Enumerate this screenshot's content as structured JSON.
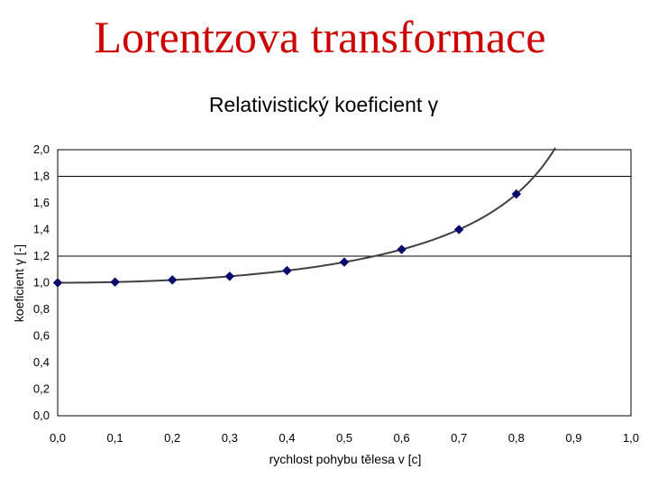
{
  "slide": {
    "title": "Lorentzova transformace"
  },
  "chart_data": {
    "type": "line",
    "title": "Relativistický koeficient γ",
    "xlabel": "rychlost pohybu tělesa v [c]",
    "ylabel": "koeficient γ [-]",
    "xlim": [
      0,
      1.0
    ],
    "ylim": [
      0,
      2.0
    ],
    "x_ticks": [
      "0,0",
      "0,1",
      "0,2",
      "0,3",
      "0,4",
      "0,5",
      "0,6",
      "0,7",
      "0,8",
      "0,9",
      "1,0"
    ],
    "y_ticks": [
      "0,0",
      "0,2",
      "0,4",
      "0,6",
      "0,8",
      "1,0",
      "1,2",
      "1,4",
      "1,6",
      "1,8",
      "2,0"
    ],
    "gridlines_y": [
      1.2,
      1.8
    ],
    "grid": "partial horizontal",
    "legend": "none",
    "series": [
      {
        "x": [
          0.0,
          0.1,
          0.2,
          0.3,
          0.4,
          0.5,
          0.6,
          0.7,
          0.8
        ],
        "values": [
          1.0,
          1.005,
          1.021,
          1.048,
          1.091,
          1.155,
          1.25,
          1.4,
          1.667
        ],
        "marker": "diamond",
        "color": "#0a0a6e"
      }
    ],
    "curve": "γ = 1/√(1−v²)",
    "curve_color": "#404040",
    "axis_color": "#000000"
  }
}
